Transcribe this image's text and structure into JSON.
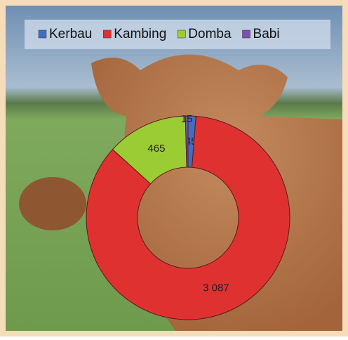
{
  "chart_data": {
    "type": "donut",
    "categories": [
      "Kerbau",
      "Kambing",
      "Domba",
      "Babi"
    ],
    "values": [
      45,
      3087,
      465,
      15
    ],
    "value_labels": [
      "45",
      "3 087",
      "465",
      "15"
    ],
    "colors": [
      "#3f6fc4",
      "#e03131",
      "#9ccc34",
      "#7b4fb3"
    ],
    "legend": "top"
  }
}
